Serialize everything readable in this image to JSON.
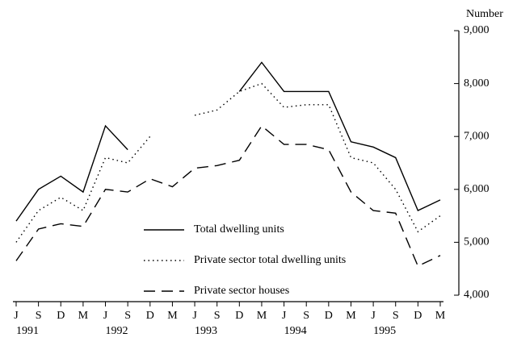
{
  "chart_data": {
    "type": "line",
    "y_axis_label": "Number",
    "categories": [
      "J",
      "S",
      "D",
      "M",
      "J",
      "S",
      "D",
      "M",
      "J",
      "S",
      "D",
      "M",
      "J",
      "S",
      "D",
      "M",
      "J",
      "S",
      "D",
      "M"
    ],
    "year_labels": [
      "1991",
      null,
      null,
      null,
      "1992",
      null,
      null,
      null,
      "1993",
      null,
      null,
      null,
      "1994",
      null,
      null,
      null,
      "1995",
      null,
      null,
      null
    ],
    "series": [
      {
        "name": "Total dwelling units",
        "color": "#000000",
        "dash": "solid",
        "values": [
          5400,
          6000,
          6250,
          5950,
          7200,
          6750,
          null,
          null,
          null,
          null,
          7850,
          8400,
          7850,
          7850,
          7850,
          6900,
          6800,
          6600,
          5600,
          5800
        ]
      },
      {
        "name": "Private sector total dwelling units",
        "color": "#000000",
        "dash": "dotted",
        "values": [
          5000,
          5600,
          5850,
          5600,
          6600,
          6500,
          7000,
          null,
          7400,
          7500,
          7850,
          8000,
          7550,
          7600,
          7600,
          6600,
          6500,
          6000,
          5200,
          5500
        ]
      },
      {
        "name": "Private sector houses",
        "color": "#000000",
        "dash": "dashed",
        "values": [
          4650,
          5250,
          5350,
          5300,
          6000,
          5950,
          6200,
          6050,
          6400,
          6450,
          6550,
          7200,
          6850,
          6850,
          6750,
          5950,
          5600,
          5550,
          4550,
          4750
        ]
      }
    ],
    "ylim": [
      4000,
      9000
    ],
    "yticks": [
      {
        "value": 4000,
        "label": "4,000"
      },
      {
        "value": 5000,
        "label": "5,000"
      },
      {
        "value": 6000,
        "label": "6,000"
      },
      {
        "value": 7000,
        "label": "7,000"
      },
      {
        "value": 8000,
        "label": "8,000"
      },
      {
        "value": 9000,
        "label": "9,000"
      }
    ]
  }
}
